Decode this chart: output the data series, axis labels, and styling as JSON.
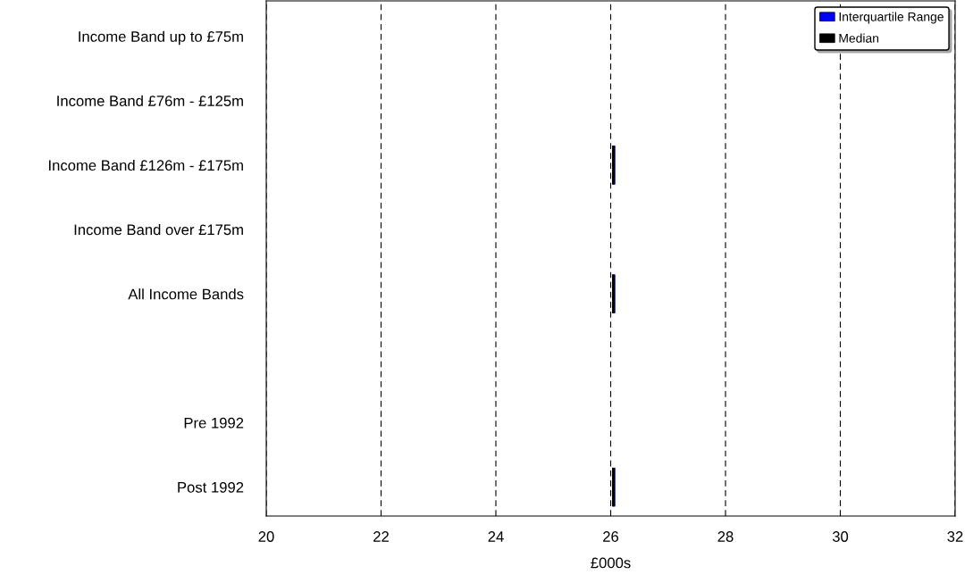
{
  "chart_data": {
    "type": "box",
    "orientation": "horizontal",
    "xlabel": "£000s",
    "categories": [
      "Income Band up to £75m",
      "Income Band £76m - £125m",
      "Income Band £126m - £175m",
      "Income Band over £175m",
      "All Income Bands",
      null,
      "Pre 1992",
      "Post 1992"
    ],
    "xlim": [
      20,
      32
    ],
    "xticks": [
      20,
      22,
      24,
      26,
      28,
      30,
      32
    ],
    "grid": "x",
    "legend": "top right",
    "series": [
      {
        "name": "Interquartile Range",
        "color": "#0000ff",
        "boxes": [
          null,
          null,
          {
            "low": 26.05,
            "q1": 26.05,
            "median": 26.05,
            "q3": 26.05,
            "high": 26.05
          },
          null,
          {
            "low": 26.05,
            "q1": 26.05,
            "median": 26.05,
            "q3": 26.05,
            "high": 26.05
          },
          null,
          null,
          {
            "low": 26.05,
            "q1": 26.05,
            "median": 26.05,
            "q3": 26.05,
            "high": 26.05
          }
        ]
      },
      {
        "name": "Median",
        "color": "#000000",
        "boxes": [
          null,
          null,
          {
            "low": 26.05,
            "q1": 26.05,
            "median": 26.05,
            "q3": 26.05,
            "high": 26.05
          },
          null,
          {
            "low": 26.05,
            "q1": 26.05,
            "median": 26.05,
            "q3": 26.05,
            "high": 26.05
          },
          null,
          null,
          {
            "low": 26.05,
            "q1": 26.05,
            "median": 26.05,
            "q3": 26.05,
            "high": 26.05
          }
        ]
      }
    ]
  }
}
